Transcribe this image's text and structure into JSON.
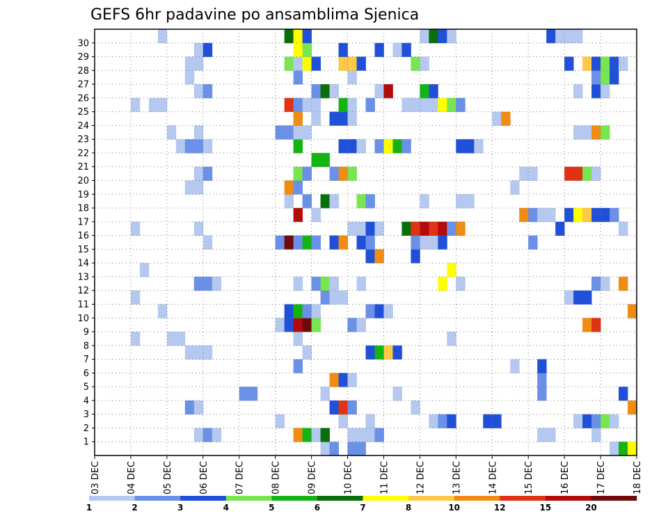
{
  "chart_data": {
    "type": "heatmap",
    "title": "GEFS 6hr padavine po ansamblima Sjenica",
    "x_tick_labels": [
      "03 DEC",
      "04 DEC",
      "05 DEC",
      "06 DEC",
      "07 DEC",
      "08 DEC",
      "09 DEC",
      "10 DEC",
      "11 DEC",
      "12 DEC",
      "13 DEC",
      "14 DEC",
      "15 DEC",
      "16 DEC",
      "17 DEC",
      "18 DEC"
    ],
    "x_steps_per_day": 4,
    "x_total_steps": 60,
    "ensemble_members": [
      1,
      2,
      3,
      4,
      5,
      6,
      7,
      8,
      9,
      10,
      11,
      12,
      13,
      14,
      15,
      16,
      17,
      18,
      19,
      20,
      21,
      22,
      23,
      24,
      25,
      26,
      27,
      28,
      29,
      30
    ],
    "grid": true,
    "colorbar": {
      "levels": [
        "1",
        "2",
        "3",
        "4",
        "5",
        "6",
        "7",
        "8",
        "10",
        "12",
        "15",
        "20"
      ],
      "colors": [
        "#b4c8f0",
        "#6a90e8",
        "#2050d8",
        "#78e650",
        "#14b414",
        "#0a6e0a",
        "#ffff00",
        "#ffc846",
        "#f08c14",
        "#e03214",
        "#b40a0a",
        "#6e0a0a"
      ]
    },
    "values": {
      "30": [
        [
          7,
          1
        ],
        [
          21,
          6
        ],
        [
          22,
          7
        ],
        [
          23,
          3
        ],
        [
          36,
          1
        ],
        [
          37,
          6
        ],
        [
          38,
          3
        ],
        [
          39,
          1
        ],
        [
          50,
          3
        ],
        [
          51,
          1
        ],
        [
          52,
          1
        ],
        [
          53,
          1
        ]
      ],
      "29": [
        [
          11,
          1
        ],
        [
          12,
          3
        ],
        [
          22,
          7
        ],
        [
          23,
          4
        ],
        [
          27,
          3
        ],
        [
          31,
          3
        ],
        [
          33,
          1
        ],
        [
          34,
          3
        ]
      ],
      "28": [
        [
          10,
          1
        ],
        [
          11,
          1
        ],
        [
          21,
          4
        ],
        [
          22,
          1
        ],
        [
          23,
          7
        ],
        [
          24,
          3
        ],
        [
          27,
          8
        ],
        [
          28,
          8
        ],
        [
          29,
          3
        ],
        [
          35,
          4
        ],
        [
          36,
          1
        ],
        [
          52,
          3
        ],
        [
          54,
          8
        ],
        [
          55,
          3
        ],
        [
          56,
          4
        ],
        [
          57,
          3
        ],
        [
          58,
          1
        ]
      ],
      "27": [
        [
          10,
          1
        ],
        [
          22,
          2
        ],
        [
          28,
          1
        ],
        [
          55,
          2
        ],
        [
          56,
          4
        ],
        [
          57,
          3
        ]
      ],
      "26": [
        [
          11,
          1
        ],
        [
          12,
          2
        ],
        [
          24,
          2
        ],
        [
          25,
          6
        ],
        [
          26,
          1
        ],
        [
          31,
          1
        ],
        [
          32,
          11
        ],
        [
          36,
          5
        ],
        [
          37,
          3
        ],
        [
          53,
          1
        ],
        [
          55,
          3
        ],
        [
          56,
          1
        ]
      ],
      "25": [
        [
          4,
          1
        ],
        [
          6,
          1
        ],
        [
          7,
          1
        ],
        [
          21,
          10
        ],
        [
          22,
          2
        ],
        [
          23,
          1
        ],
        [
          24,
          1
        ],
        [
          27,
          5
        ],
        [
          28,
          1
        ],
        [
          30,
          2
        ],
        [
          34,
          1
        ],
        [
          35,
          1
        ],
        [
          36,
          1
        ],
        [
          37,
          1
        ],
        [
          38,
          7
        ],
        [
          39,
          4
        ],
        [
          40,
          2
        ]
      ],
      "24": [
        [
          22,
          9
        ],
        [
          24,
          1
        ],
        [
          26,
          3
        ],
        [
          27,
          3
        ],
        [
          28,
          1
        ],
        [
          44,
          1
        ],
        [
          45,
          9
        ]
      ],
      "23": [
        [
          8,
          1
        ],
        [
          11,
          1
        ],
        [
          20,
          2
        ],
        [
          21,
          2
        ],
        [
          22,
          1
        ],
        [
          23,
          1
        ],
        [
          53,
          1
        ],
        [
          54,
          1
        ],
        [
          55,
          9
        ],
        [
          56,
          4
        ]
      ],
      "22": [
        [
          9,
          1
        ],
        [
          10,
          2
        ],
        [
          11,
          2
        ],
        [
          12,
          1
        ],
        [
          22,
          5
        ],
        [
          27,
          3
        ],
        [
          28,
          3
        ],
        [
          29,
          1
        ],
        [
          31,
          2
        ],
        [
          32,
          7
        ],
        [
          33,
          5
        ],
        [
          34,
          2
        ],
        [
          40,
          3
        ],
        [
          41,
          3
        ],
        [
          42,
          1
        ]
      ],
      "21": [
        [
          24,
          5
        ],
        [
          25,
          5
        ]
      ],
      "20": [
        [
          11,
          1
        ],
        [
          12,
          2
        ],
        [
          22,
          4
        ],
        [
          23,
          2
        ],
        [
          26,
          2
        ],
        [
          27,
          9
        ],
        [
          28,
          4
        ],
        [
          47,
          1
        ],
        [
          48,
          1
        ],
        [
          52,
          10
        ],
        [
          53,
          10
        ],
        [
          54,
          4
        ],
        [
          55,
          1
        ]
      ],
      "19": [
        [
          10,
          1
        ],
        [
          11,
          1
        ],
        [
          21,
          9
        ],
        [
          22,
          2
        ],
        [
          46,
          1
        ]
      ],
      "18": [
        [
          21,
          1
        ],
        [
          23,
          2
        ],
        [
          25,
          6
        ],
        [
          26,
          1
        ],
        [
          29,
          4
        ],
        [
          30,
          2
        ],
        [
          36,
          1
        ],
        [
          40,
          1
        ],
        [
          41,
          1
        ]
      ],
      "17": [
        [
          22,
          11
        ],
        [
          24,
          1
        ],
        [
          47,
          9
        ],
        [
          48,
          2
        ],
        [
          49,
          1
        ],
        [
          50,
          1
        ],
        [
          52,
          3
        ],
        [
          53,
          7
        ],
        [
          54,
          8
        ],
        [
          55,
          3
        ],
        [
          56,
          3
        ],
        [
          57,
          2
        ]
      ],
      "16": [
        [
          4,
          1
        ],
        [
          11,
          1
        ],
        [
          28,
          1
        ],
        [
          29,
          1
        ],
        [
          30,
          3
        ],
        [
          31,
          1
        ],
        [
          34,
          6
        ],
        [
          35,
          10
        ],
        [
          36,
          11
        ],
        [
          37,
          10
        ],
        [
          38,
          11
        ],
        [
          39,
          2
        ],
        [
          40,
          9
        ],
        [
          51,
          3
        ],
        [
          58,
          1
        ]
      ],
      "15": [
        [
          12,
          1
        ],
        [
          20,
          2
        ],
        [
          21,
          12
        ],
        [
          22,
          2
        ],
        [
          23,
          5
        ],
        [
          24,
          2
        ],
        [
          26,
          3
        ],
        [
          27,
          9
        ],
        [
          29,
          3
        ],
        [
          30,
          2
        ],
        [
          35,
          2
        ],
        [
          36,
          1
        ],
        [
          37,
          1
        ],
        [
          38,
          3
        ],
        [
          48,
          2
        ]
      ],
      "14": [
        [
          30,
          3
        ],
        [
          31,
          9
        ],
        [
          35,
          3
        ]
      ],
      "13": [
        [
          5,
          1
        ],
        [
          39,
          7
        ]
      ],
      "12": [
        [
          11,
          2
        ],
        [
          12,
          2
        ],
        [
          13,
          1
        ],
        [
          22,
          1
        ],
        [
          24,
          2
        ],
        [
          25,
          4
        ],
        [
          26,
          1
        ],
        [
          29,
          1
        ],
        [
          38,
          7
        ],
        [
          40,
          1
        ],
        [
          55,
          2
        ],
        [
          56,
          1
        ],
        [
          58,
          9
        ]
      ],
      "11": [
        [
          4,
          1
        ],
        [
          25,
          2
        ],
        [
          26,
          1
        ],
        [
          27,
          1
        ],
        [
          52,
          1
        ],
        [
          53,
          3
        ],
        [
          54,
          3
        ]
      ],
      "10": [
        [
          7,
          1
        ],
        [
          21,
          3
        ],
        [
          22,
          5
        ],
        [
          23,
          2
        ],
        [
          24,
          1
        ],
        [
          30,
          2
        ],
        [
          31,
          3
        ],
        [
          32,
          1
        ],
        [
          59,
          9
        ]
      ],
      "9": [
        [
          20,
          1
        ],
        [
          21,
          3
        ],
        [
          22,
          11
        ],
        [
          23,
          12
        ],
        [
          24,
          4
        ],
        [
          28,
          2
        ],
        [
          29,
          1
        ],
        [
          54,
          9
        ],
        [
          55,
          10
        ]
      ],
      "8": [
        [
          4,
          1
        ],
        [
          8,
          1
        ],
        [
          9,
          1
        ],
        [
          22,
          1
        ],
        [
          39,
          1
        ]
      ],
      "7": [
        [
          10,
          1
        ],
        [
          11,
          1
        ],
        [
          12,
          1
        ],
        [
          23,
          1
        ],
        [
          30,
          3
        ],
        [
          31,
          5
        ],
        [
          32,
          8
        ],
        [
          33,
          3
        ]
      ],
      "6": [
        [
          22,
          2
        ],
        [
          46,
          1
        ],
        [
          49,
          3
        ]
      ],
      "5": [
        [
          26,
          9
        ],
        [
          27,
          3
        ],
        [
          28,
          1
        ],
        [
          49,
          2
        ]
      ],
      "4": [
        [
          16,
          2
        ],
        [
          17,
          2
        ],
        [
          25,
          1
        ],
        [
          33,
          1
        ],
        [
          49,
          2
        ],
        [
          58,
          3
        ]
      ],
      "3": [
        [
          10,
          2
        ],
        [
          11,
          1
        ],
        [
          26,
          3
        ],
        [
          27,
          10
        ],
        [
          28,
          2
        ],
        [
          35,
          1
        ],
        [
          59,
          9
        ]
      ],
      "2": [
        [
          20,
          1
        ],
        [
          27,
          1
        ],
        [
          30,
          1
        ],
        [
          37,
          1
        ],
        [
          38,
          2
        ],
        [
          39,
          3
        ],
        [
          43,
          3
        ],
        [
          44,
          3
        ],
        [
          53,
          1
        ],
        [
          54,
          3
        ],
        [
          55,
          2
        ],
        [
          56,
          4
        ],
        [
          57,
          1
        ]
      ],
      "1": [
        [
          11,
          1
        ],
        [
          12,
          2
        ],
        [
          13,
          1
        ],
        [
          22,
          9
        ],
        [
          23,
          5
        ],
        [
          24,
          1
        ],
        [
          25,
          6
        ],
        [
          28,
          1
        ],
        [
          29,
          1
        ],
        [
          30,
          1
        ],
        [
          31,
          2
        ],
        [
          49,
          1
        ],
        [
          50,
          1
        ],
        [
          55,
          1
        ]
      ],
      "0": [
        [
          25,
          1
        ],
        [
          26,
          2
        ],
        [
          28,
          2
        ],
        [
          29,
          2
        ],
        [
          57,
          1
        ],
        [
          58,
          5
        ],
        [
          59,
          7
        ]
      ]
    }
  }
}
